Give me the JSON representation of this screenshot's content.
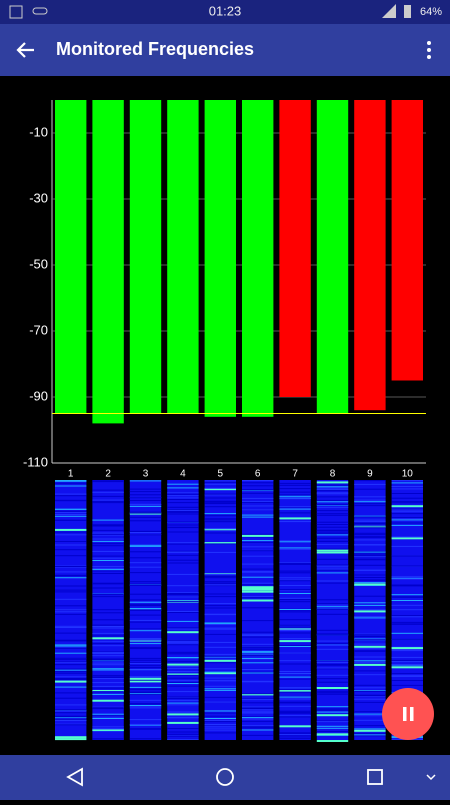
{
  "status_bar": {
    "time": "01:23",
    "battery": "64%"
  },
  "app_bar": {
    "title": "Monitored Frequencies"
  },
  "chart_data": {
    "type": "bar",
    "categories": [
      "1",
      "2",
      "3",
      "4",
      "5",
      "6",
      "7",
      "8",
      "9",
      "10"
    ],
    "values": [
      -95,
      -98,
      -95,
      -95,
      -96,
      -96,
      -90,
      -95,
      -94,
      -85
    ],
    "colors": [
      "#00ff00",
      "#00ff00",
      "#00ff00",
      "#00ff00",
      "#00ff00",
      "#00ff00",
      "#ff0000",
      "#00ff00",
      "#ff0000",
      "#ff0000"
    ],
    "threshold": -95,
    "threshold_color": "#ffff00",
    "ylim": [
      -110,
      0
    ],
    "yticks": [
      -110,
      -90,
      -70,
      -50,
      -30,
      -10
    ],
    "grid": true
  }
}
